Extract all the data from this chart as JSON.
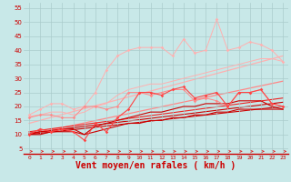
{
  "xlabel": "Vent moyen/en rafales ( km/h )",
  "xlim": [
    -0.5,
    23.5
  ],
  "ylim": [
    3,
    57
  ],
  "yticks": [
    5,
    10,
    15,
    20,
    25,
    30,
    35,
    40,
    45,
    50,
    55
  ],
  "xticks": [
    0,
    1,
    2,
    3,
    4,
    5,
    6,
    7,
    8,
    9,
    10,
    11,
    12,
    13,
    14,
    15,
    16,
    17,
    18,
    19,
    20,
    21,
    22,
    23
  ],
  "bg_color": "#c8e8e8",
  "grid_color": "#aacccc",
  "xlabel_color": "#cc0000",
  "tick_color": "#cc0000",
  "line_pink_light_color": "#ffb0b0",
  "line_pink_med_color": "#ff8888",
  "line_red_bright_color": "#ff4444",
  "line_red_dark_color": "#cc0000",
  "line_red_medium_color": "#ee2222",
  "arrow_color": "#dd3333",
  "x": [
    0,
    1,
    2,
    3,
    4,
    5,
    6,
    7,
    8,
    9,
    10,
    11,
    12,
    13,
    14,
    15,
    16,
    17,
    18,
    19,
    20,
    21,
    22,
    23
  ],
  "ser_pink_nomark": [
    16.5,
    17,
    18,
    18,
    17,
    18,
    20,
    21,
    24,
    26,
    27,
    28,
    28,
    29,
    30,
    31,
    32,
    33,
    34,
    35,
    36,
    37,
    37,
    36
  ],
  "ser_pink_mark": [
    17,
    19,
    21,
    21,
    19,
    20,
    25,
    33,
    38,
    40,
    41,
    41,
    41,
    38,
    44,
    39,
    40,
    51,
    40,
    41,
    43,
    42,
    40,
    36
  ],
  "ser_med_mark": [
    16,
    17,
    17,
    16,
    16,
    20,
    20,
    19,
    20,
    25,
    25,
    24,
    25,
    26,
    26,
    22,
    23,
    22,
    20,
    25,
    25,
    26,
    21,
    20
  ],
  "ser_red_mark": [
    10,
    12,
    11,
    12,
    11,
    8,
    14,
    11,
    16,
    19,
    25,
    25,
    24,
    26,
    27,
    23,
    24,
    25,
    20,
    25,
    25,
    26,
    21,
    20
  ],
  "ser_dark1": [
    10,
    10,
    11,
    11,
    11,
    10,
    11,
    12,
    13,
    14,
    14,
    15,
    15,
    16,
    16,
    17,
    17,
    18,
    18,
    19,
    19,
    19,
    19,
    19
  ],
  "ser_dark2": [
    10,
    11,
    11,
    12,
    12,
    10,
    13,
    14,
    15,
    16,
    17,
    18,
    18,
    19,
    20,
    20,
    21,
    21,
    21,
    22,
    22,
    22,
    20,
    19
  ],
  "trend_pink_light": [
    14,
    38
  ],
  "trend_pink_med": [
    10,
    29
  ],
  "trend_dark": [
    10,
    20
  ]
}
